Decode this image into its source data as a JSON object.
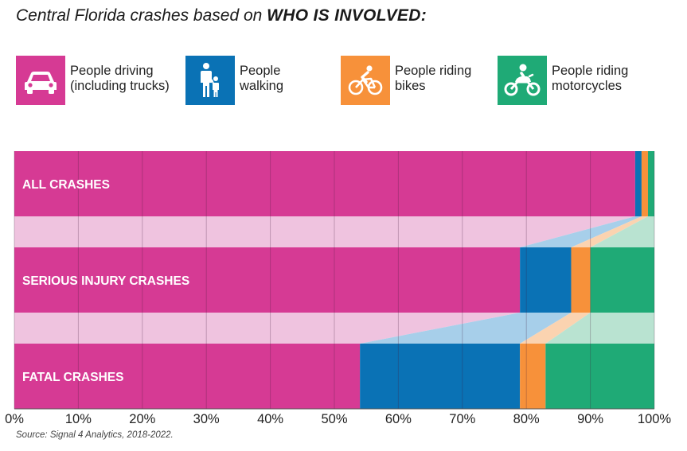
{
  "title": {
    "prefix": "Central Florida crashes based on ",
    "emphasis": "WHO IS INVOLVED:"
  },
  "legend": [
    {
      "label": "People driving\n(including trucks)",
      "color": "#d63a94",
      "icon": "car-icon"
    },
    {
      "label": "People\nwalking",
      "color": "#0a72b5",
      "icon": "pedestrian-icon"
    },
    {
      "label": "People riding\nbikes",
      "color": "#f7913a",
      "icon": "bicycle-icon"
    },
    {
      "label": "People riding\nmotorcycles",
      "color": "#1faa76",
      "icon": "motorcycle-icon"
    }
  ],
  "chart_data": {
    "type": "bar",
    "orientation": "horizontal",
    "stacked": true,
    "normalized": true,
    "categories": [
      "ALL CRASHES",
      "SERIOUS INJURY CRASHES",
      "FATAL CRASHES"
    ],
    "series": [
      {
        "name": "People driving (including trucks)",
        "color": "#d63a94",
        "values": [
          97,
          79,
          54
        ]
      },
      {
        "name": "People walking",
        "color": "#0a72b5",
        "values": [
          1,
          8,
          25
        ]
      },
      {
        "name": "People riding bikes",
        "color": "#f7913a",
        "values": [
          1,
          3,
          4
        ]
      },
      {
        "name": "People riding motorcycles",
        "color": "#1faa76",
        "values": [
          1,
          10,
          17
        ]
      }
    ],
    "connector_colors": [
      "#efc3df",
      "#a7cfea",
      "#fbd3b0",
      "#b9e3d1"
    ],
    "xlim": [
      0,
      100
    ],
    "x_ticks": [
      0,
      10,
      20,
      30,
      40,
      50,
      60,
      70,
      80,
      90,
      100
    ],
    "x_tick_labels": [
      "0%",
      "10%",
      "20%",
      "30%",
      "40%",
      "50%",
      "60%",
      "70%",
      "80%",
      "90%",
      "100%"
    ],
    "gridlines": true
  },
  "source": "Source: Signal 4 Analytics, 2018-2022."
}
